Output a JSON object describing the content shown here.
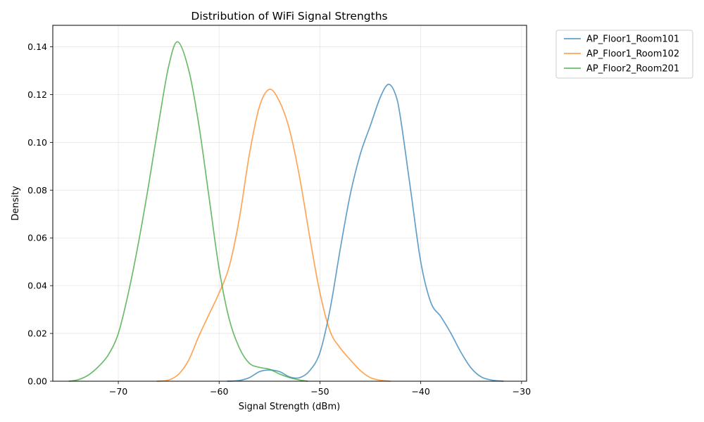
{
  "chart_data": {
    "type": "line",
    "title": "Distribution of WiFi Signal Strengths",
    "xlabel": "Signal Strength (dBm)",
    "ylabel": "Density",
    "xlim": [
      -76.5,
      -29.5
    ],
    "ylim": [
      0,
      0.149
    ],
    "x_ticks": [
      -70,
      -60,
      -50,
      -40,
      -30
    ],
    "x_tick_labels": [
      "−70",
      "−60",
      "−50",
      "−40",
      "−30"
    ],
    "y_ticks": [
      0,
      0.02,
      0.04,
      0.06,
      0.08,
      0.1,
      0.12,
      0.14
    ],
    "y_tick_labels": [
      "0.00",
      "0.02",
      "0.04",
      "0.06",
      "0.08",
      "0.10",
      "0.12",
      "0.14"
    ],
    "grid": true,
    "legend_position": "outside-top-right",
    "series": [
      {
        "name": "AP_Floor1_Room101",
        "color": "#1f77b4",
        "points": [
          [
            -59.2,
            0.0
          ],
          [
            -58,
            0.0003
          ],
          [
            -57,
            0.0015
          ],
          [
            -56,
            0.004
          ],
          [
            -55,
            0.0047
          ],
          [
            -54,
            0.004
          ],
          [
            -53,
            0.0018
          ],
          [
            -52,
            0.0015
          ],
          [
            -51,
            0.0045
          ],
          [
            -50,
            0.012
          ],
          [
            -49,
            0.03
          ],
          [
            -48,
            0.055
          ],
          [
            -47,
            0.078
          ],
          [
            -46,
            0.095
          ],
          [
            -45,
            0.107
          ],
          [
            -44,
            0.119
          ],
          [
            -43.2,
            0.1243
          ],
          [
            -42.5,
            0.12
          ],
          [
            -42,
            0.11
          ],
          [
            -41,
            0.08
          ],
          [
            -40,
            0.05
          ],
          [
            -39,
            0.033
          ],
          [
            -38,
            0.027
          ],
          [
            -37,
            0.02
          ],
          [
            -36,
            0.012
          ],
          [
            -35,
            0.0055
          ],
          [
            -34,
            0.0018
          ],
          [
            -33,
            0.0005
          ],
          [
            -31.8,
            0.0
          ]
        ]
      },
      {
        "name": "AP_Floor1_Room102",
        "color": "#ff7f0e",
        "points": [
          [
            -66.2,
            0.0
          ],
          [
            -65,
            0.0005
          ],
          [
            -64,
            0.003
          ],
          [
            -63,
            0.009
          ],
          [
            -62,
            0.019
          ],
          [
            -61,
            0.028
          ],
          [
            -60,
            0.037
          ],
          [
            -59,
            0.048
          ],
          [
            -58,
            0.068
          ],
          [
            -57,
            0.095
          ],
          [
            -56,
            0.115
          ],
          [
            -55,
            0.1222
          ],
          [
            -54,
            0.117
          ],
          [
            -53,
            0.105
          ],
          [
            -52,
            0.085
          ],
          [
            -51,
            0.06
          ],
          [
            -50,
            0.037
          ],
          [
            -49,
            0.021
          ],
          [
            -48,
            0.014
          ],
          [
            -47,
            0.009
          ],
          [
            -46,
            0.0045
          ],
          [
            -45,
            0.0015
          ],
          [
            -44,
            0.0004
          ],
          [
            -43,
            0.0
          ]
        ]
      },
      {
        "name": "AP_Floor2_Room201",
        "color": "#2ca02c",
        "points": [
          [
            -74.9,
            0.0
          ],
          [
            -74,
            0.0006
          ],
          [
            -73,
            0.0025
          ],
          [
            -72,
            0.006
          ],
          [
            -71,
            0.011
          ],
          [
            -70,
            0.02
          ],
          [
            -69,
            0.037
          ],
          [
            -68,
            0.058
          ],
          [
            -67,
            0.082
          ],
          [
            -66,
            0.108
          ],
          [
            -65,
            0.132
          ],
          [
            -64.1,
            0.1421
          ],
          [
            -63,
            0.13
          ],
          [
            -62,
            0.107
          ],
          [
            -61,
            0.077
          ],
          [
            -60,
            0.047
          ],
          [
            -59,
            0.026
          ],
          [
            -58,
            0.014
          ],
          [
            -57,
            0.0075
          ],
          [
            -56,
            0.0058
          ],
          [
            -55,
            0.005
          ],
          [
            -54,
            0.003
          ],
          [
            -53,
            0.0015
          ],
          [
            -52,
            0.0005
          ],
          [
            -51.2,
            0.0
          ]
        ]
      }
    ]
  }
}
